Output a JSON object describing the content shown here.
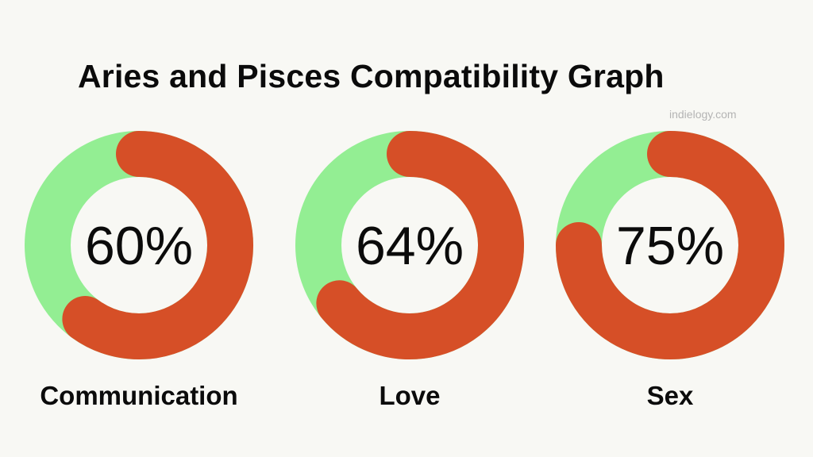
{
  "title": "Aries and Pisces Compatibility Graph",
  "watermark": "indielogy.com",
  "colors": {
    "filled": "#d64f27",
    "remaining": "#93ee93",
    "background": "#f8f8f4",
    "text": "#0b0b0b"
  },
  "chart_data": {
    "type": "pie",
    "title": "Aries and Pisces Compatibility Graph",
    "categories": [
      "Communication",
      "Love",
      "Sex"
    ],
    "values": [
      60,
      64,
      75
    ],
    "labels": [
      "60%",
      "64%",
      "75%"
    ],
    "max": 100
  }
}
